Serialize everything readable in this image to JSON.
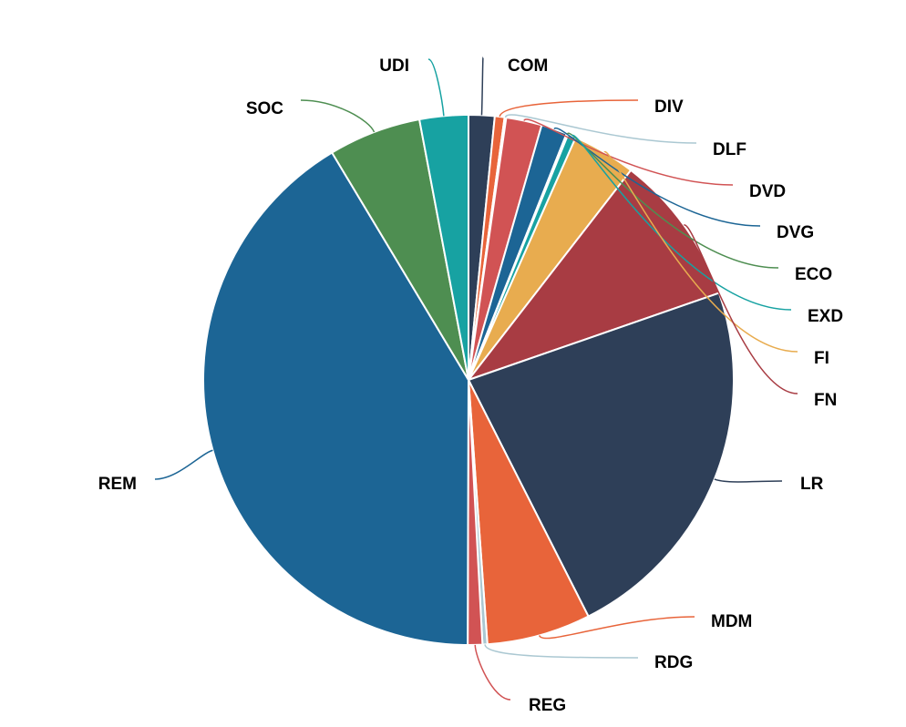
{
  "chart_data": {
    "type": "pie",
    "title": "",
    "legend": "none",
    "slices": [
      {
        "label": "COM",
        "value": 1.6,
        "color": "#2e3f58"
      },
      {
        "label": "DIV",
        "value": 0.6,
        "color": "#e8643a"
      },
      {
        "label": "DLF",
        "value": 0.1,
        "color": "#abc8d2"
      },
      {
        "label": "DVD",
        "value": 2.2,
        "color": "#d15354"
      },
      {
        "label": "DVG",
        "value": 1.6,
        "color": "#1c6595"
      },
      {
        "label": "ECO",
        "value": 0.1,
        "color": "#4e8e51"
      },
      {
        "label": "EXD",
        "value": 0.5,
        "color": "#17a2a2"
      },
      {
        "label": "FI",
        "value": 3.9,
        "color": "#e8ac4f"
      },
      {
        "label": "FN",
        "value": 9.3,
        "color": "#a83c43"
      },
      {
        "label": "LR",
        "value": 23.1,
        "color": "#2e3f58"
      },
      {
        "label": "MDM",
        "value": 6.4,
        "color": "#e8643a"
      },
      {
        "label": "RDG",
        "value": 0.3,
        "color": "#abc8d2"
      },
      {
        "label": "REG",
        "value": 0.9,
        "color": "#d15354"
      },
      {
        "label": "REM",
        "value": 41.8,
        "color": "#1c6595"
      },
      {
        "label": "SOC",
        "value": 5.7,
        "color": "#4e8e51"
      },
      {
        "label": "UDI",
        "value": 3.0,
        "color": "#17a2a2"
      }
    ]
  }
}
